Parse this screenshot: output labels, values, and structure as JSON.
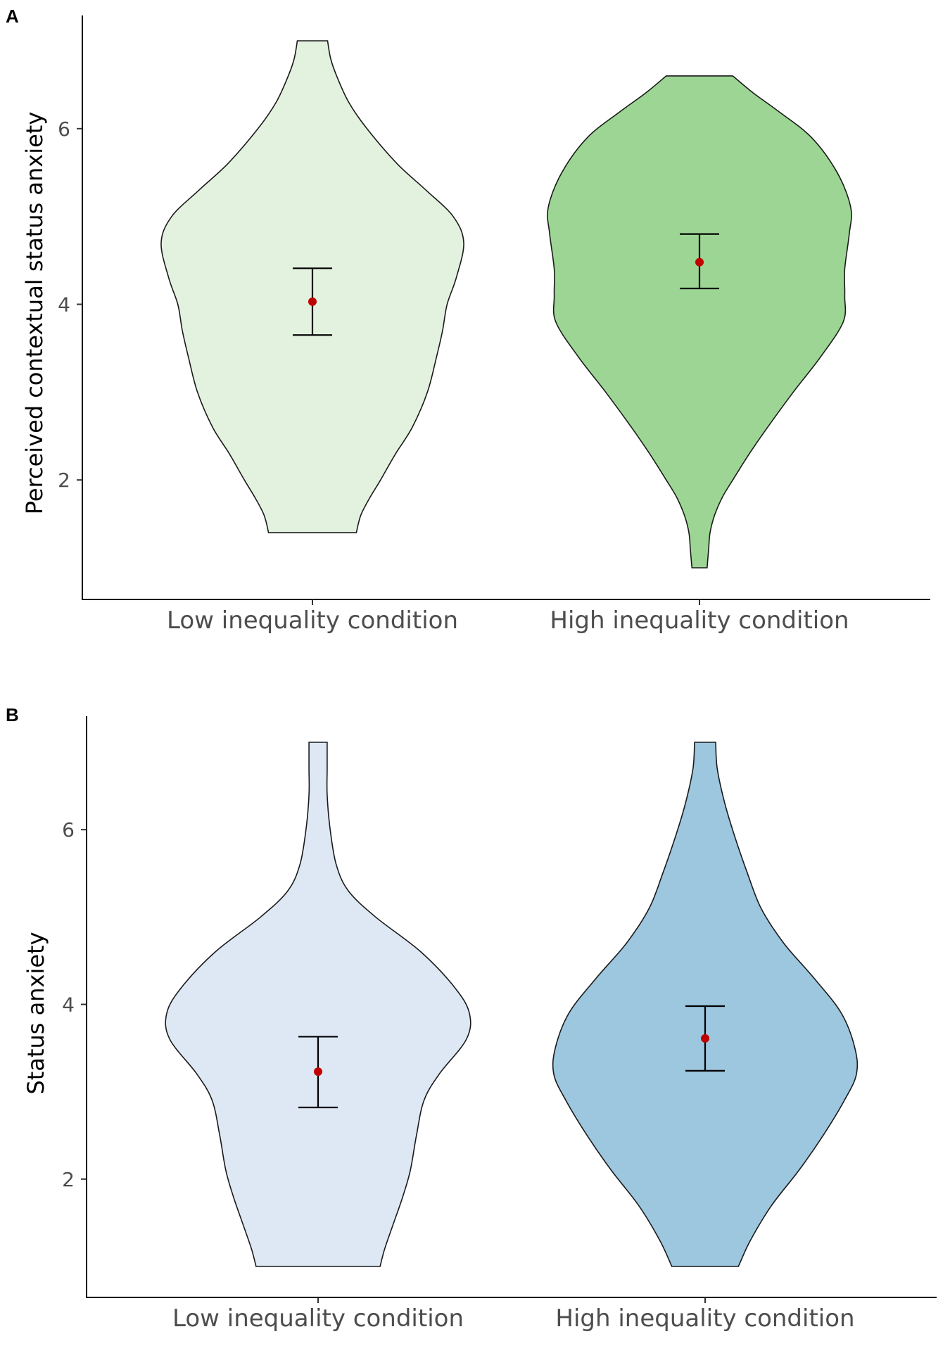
{
  "chart_data": [
    {
      "type": "violin",
      "panel_label": "A",
      "ylabel": "Perceived contextual status anxiety",
      "xlabel": "",
      "ylim": [
        0.7,
        7.3
      ],
      "yticks": [
        2,
        4,
        6
      ],
      "ytick_labels": [
        "2",
        "4",
        "6"
      ],
      "categories": [
        "Low inequality condition",
        "High inequality condition"
      ],
      "colors": [
        "#e3f2de",
        "#9dd694"
      ],
      "series": [
        {
          "name": "Low inequality condition",
          "mean": 4.03,
          "ci": [
            3.65,
            4.41
          ],
          "density": [
            [
              1.4,
              0.29
            ],
            [
              1.6,
              0.32
            ],
            [
              1.8,
              0.38
            ],
            [
              2.0,
              0.45
            ],
            [
              2.3,
              0.55
            ],
            [
              2.6,
              0.66
            ],
            [
              3.0,
              0.76
            ],
            [
              3.4,
              0.82
            ],
            [
              3.7,
              0.86
            ],
            [
              4.0,
              0.89
            ],
            [
              4.3,
              0.95
            ],
            [
              4.7,
              1.0
            ],
            [
              5.0,
              0.93
            ],
            [
              5.3,
              0.75
            ],
            [
              5.6,
              0.56
            ],
            [
              6.0,
              0.36
            ],
            [
              6.3,
              0.24
            ],
            [
              6.6,
              0.16
            ],
            [
              6.8,
              0.12
            ],
            [
              7.0,
              0.1
            ]
          ]
        },
        {
          "name": "High inequality condition",
          "mean": 4.48,
          "ci": [
            4.18,
            4.8
          ],
          "density": [
            [
              1.0,
              0.05
            ],
            [
              1.2,
              0.06
            ],
            [
              1.4,
              0.07
            ],
            [
              1.6,
              0.1
            ],
            [
              1.8,
              0.15
            ],
            [
              2.0,
              0.22
            ],
            [
              2.3,
              0.33
            ],
            [
              2.6,
              0.45
            ],
            [
              3.0,
              0.62
            ],
            [
              3.4,
              0.8
            ],
            [
              3.8,
              0.95
            ],
            [
              4.1,
              0.96
            ],
            [
              4.4,
              0.96
            ],
            [
              4.8,
              0.99
            ],
            [
              5.1,
              1.0
            ],
            [
              5.5,
              0.91
            ],
            [
              5.9,
              0.74
            ],
            [
              6.2,
              0.52
            ],
            [
              6.4,
              0.36
            ],
            [
              6.6,
              0.22
            ]
          ]
        }
      ]
    },
    {
      "type": "violin",
      "panel_label": "B",
      "ylabel": "Status anxiety",
      "xlabel": "",
      "ylim": [
        0.7,
        7.3
      ],
      "yticks": [
        2,
        4,
        6
      ],
      "ytick_labels": [
        "2",
        "4",
        "6"
      ],
      "categories": [
        "Low inequality condition",
        "High inequality condition"
      ],
      "colors": [
        "#dde8f4",
        "#9dc6df"
      ],
      "series": [
        {
          "name": "Low inequality condition",
          "mean": 3.23,
          "ci": [
            2.82,
            3.63
          ],
          "density": [
            [
              1.0,
              0.41
            ],
            [
              1.2,
              0.44
            ],
            [
              1.5,
              0.5
            ],
            [
              1.8,
              0.56
            ],
            [
              2.1,
              0.61
            ],
            [
              2.5,
              0.65
            ],
            [
              2.9,
              0.7
            ],
            [
              3.2,
              0.8
            ],
            [
              3.6,
              0.98
            ],
            [
              3.9,
              1.0
            ],
            [
              4.2,
              0.9
            ],
            [
              4.6,
              0.68
            ],
            [
              5.0,
              0.38
            ],
            [
              5.3,
              0.2
            ],
            [
              5.6,
              0.12
            ],
            [
              6.0,
              0.08
            ],
            [
              6.4,
              0.06
            ],
            [
              6.7,
              0.06
            ],
            [
              7.0,
              0.06
            ]
          ]
        },
        {
          "name": "High inequality condition",
          "mean": 3.61,
          "ci": [
            3.24,
            3.98
          ],
          "density": [
            [
              1.0,
              0.22
            ],
            [
              1.3,
              0.3
            ],
            [
              1.7,
              0.44
            ],
            [
              2.1,
              0.62
            ],
            [
              2.5,
              0.78
            ],
            [
              2.9,
              0.92
            ],
            [
              3.2,
              1.0
            ],
            [
              3.5,
              0.99
            ],
            [
              3.9,
              0.9
            ],
            [
              4.3,
              0.72
            ],
            [
              4.7,
              0.52
            ],
            [
              5.1,
              0.37
            ],
            [
              5.5,
              0.28
            ],
            [
              5.9,
              0.2
            ],
            [
              6.3,
              0.13
            ],
            [
              6.7,
              0.08
            ],
            [
              7.0,
              0.07
            ]
          ]
        }
      ]
    }
  ]
}
